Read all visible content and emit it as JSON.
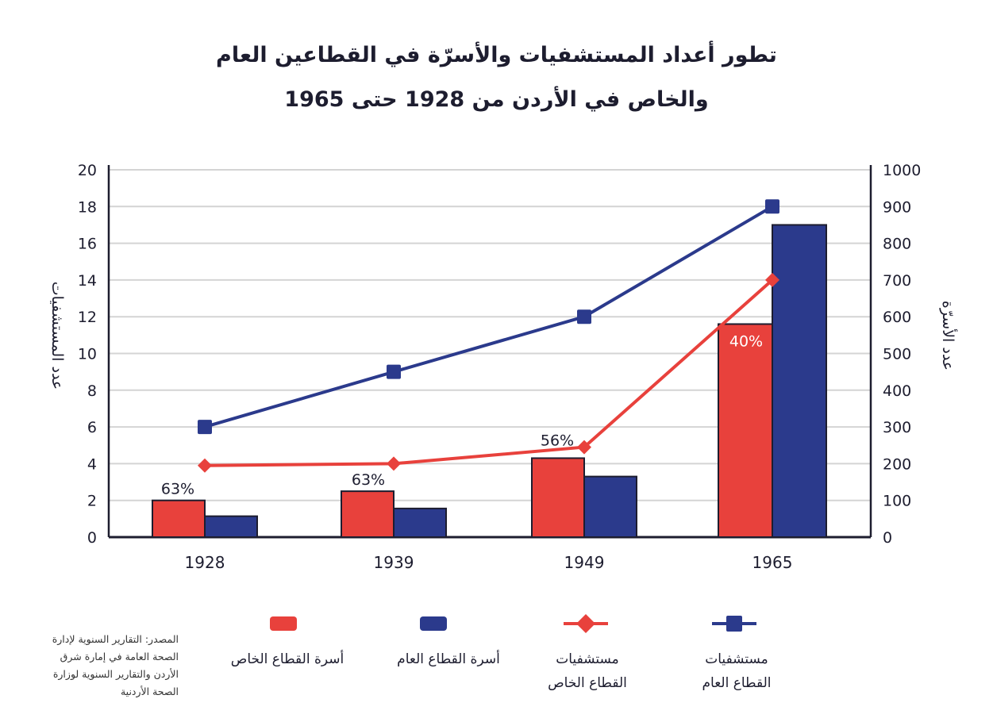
{
  "chart_data": {
    "type": "bar+line",
    "title_lines": [
      "تطور أعداد المستشفيات والأسرّة في القطاعين العام",
      "والخاص في الأردن من 1928 حتى 1965"
    ],
    "categories": [
      "1928",
      "1939",
      "1949",
      "1965"
    ],
    "y_left": {
      "label": "عدد المستشفيات",
      "range": [
        0,
        20
      ],
      "ticks": [
        "0",
        "2",
        "4",
        "6",
        "8",
        "10",
        "12",
        "14",
        "16",
        "18",
        "20"
      ]
    },
    "y_right": {
      "label": "عدد الأسرّة",
      "range": [
        0,
        1000
      ],
      "ticks": [
        "0",
        "100",
        "200",
        "300",
        "400",
        "500",
        "600",
        "700",
        "800",
        "900",
        "1000"
      ]
    },
    "bars": [
      {
        "name": "أسرة القطاع الخاص",
        "axis": "right",
        "color": "#e8413c",
        "values": [
          100,
          125,
          215,
          580
        ]
      },
      {
        "name": "أسرة القطاع العام",
        "axis": "right",
        "color": "#2b3a8c",
        "values": [
          57,
          78,
          165,
          850
        ]
      }
    ],
    "lines": [
      {
        "name": "مستشفيات القطاع الخاص",
        "axis": "left",
        "color": "#e8413c",
        "marker": "diamond",
        "values": [
          3.9,
          4.0,
          4.9,
          14
        ]
      },
      {
        "name": "مستشفيات القطاع العام",
        "axis": "left",
        "color": "#2b3a8c",
        "marker": "square",
        "values": [
          6,
          9,
          12,
          18
        ]
      }
    ],
    "annotations": [
      "63%",
      "63%",
      "56%",
      "40%"
    ],
    "grid": true
  },
  "legend": [
    {
      "label_lines": [
        "أسرة القطاع الخاص"
      ],
      "color": "#e8413c",
      "kind": "bar"
    },
    {
      "label_lines": [
        "أسرة القطاع العام"
      ],
      "color": "#2b3a8c",
      "kind": "bar"
    },
    {
      "label_lines": [
        "مستشفيات",
        "القطاع الخاص"
      ],
      "color": "#e8413c",
      "kind": "line-diamond"
    },
    {
      "label_lines": [
        "مستشفيات",
        "القطاع العام"
      ],
      "color": "#2b3a8c",
      "kind": "line-square"
    }
  ],
  "source_lines": [
    "المصدر: التقارير السنوية لإدارة",
    "الصحة العامة في إمارة شرق",
    "الأردن والتقارير السنوية لوزارة",
    "الصحة الأردنية"
  ]
}
